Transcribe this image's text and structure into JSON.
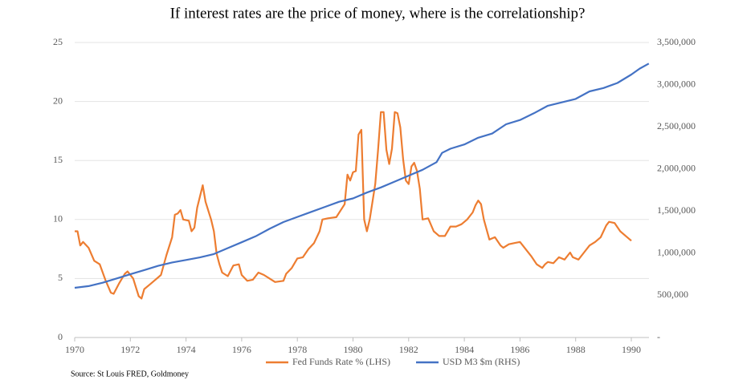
{
  "chart_data": {
    "type": "line",
    "title": "If interest rates are the price of money, where is the correlationship?",
    "source": "Source: St Louis FRED, Goldmoney",
    "xlim": [
      1970,
      1990.75
    ],
    "xticks": [
      1970,
      1972,
      1974,
      1976,
      1978,
      1980,
      1982,
      1984,
      1986,
      1988,
      1990
    ],
    "ylim": [
      0,
      25
    ],
    "yticks": [
      0,
      5,
      10,
      15,
      20,
      25
    ],
    "y2lim": [
      0,
      3500000
    ],
    "y2ticks": [
      {
        "value": 0,
        "label": "-"
      },
      {
        "value": 500000,
        "label": "500,000"
      },
      {
        "value": 1000000,
        "label": "1,000,000"
      },
      {
        "value": 1500000,
        "label": "1,500,000"
      },
      {
        "value": 2000000,
        "label": "2,000,000"
      },
      {
        "value": 2500000,
        "label": "2,500,000"
      },
      {
        "value": 3000000,
        "label": "3,000,000"
      },
      {
        "value": 3500000,
        "label": "3,500,000"
      }
    ],
    "grid": true,
    "legend": "bottom",
    "series": [
      {
        "name": "Fed Funds Rate % (LHS)",
        "color": "#ed7d31",
        "axis": "y",
        "x": [
          1970.0,
          1970.1,
          1970.2,
          1970.3,
          1970.5,
          1970.7,
          1970.9,
          1971.1,
          1971.3,
          1971.4,
          1971.6,
          1971.8,
          1971.9,
          1972.1,
          1972.3,
          1972.4,
          1972.5,
          1972.7,
          1972.9,
          1973.1,
          1973.3,
          1973.5,
          1973.6,
          1973.7,
          1973.8,
          1973.9,
          1974.1,
          1974.2,
          1974.3,
          1974.4,
          1974.6,
          1974.7,
          1974.9,
          1975.0,
          1975.1,
          1975.2,
          1975.3,
          1975.5,
          1975.7,
          1975.9,
          1976.0,
          1976.2,
          1976.4,
          1976.6,
          1976.8,
          1977.0,
          1977.2,
          1977.5,
          1977.6,
          1977.8,
          1978.0,
          1978.2,
          1978.4,
          1978.6,
          1978.8,
          1978.9,
          1979.1,
          1979.4,
          1979.7,
          1979.8,
          1979.9,
          1980.0,
          1980.1,
          1980.2,
          1980.3,
          1980.4,
          1980.5,
          1980.6,
          1980.8,
          1980.9,
          1981.0,
          1981.1,
          1981.2,
          1981.3,
          1981.4,
          1981.5,
          1981.6,
          1981.7,
          1981.8,
          1981.9,
          1982.0,
          1982.1,
          1982.2,
          1982.3,
          1982.4,
          1982.5,
          1982.7,
          1982.9,
          1983.1,
          1983.3,
          1983.5,
          1983.7,
          1983.9,
          1984.1,
          1984.3,
          1984.4,
          1984.5,
          1984.6,
          1984.7,
          1984.9,
          1985.1,
          1985.3,
          1985.4,
          1985.6,
          1985.8,
          1986.0,
          1986.2,
          1986.4,
          1986.6,
          1986.8,
          1986.9,
          1987.0,
          1987.2,
          1987.4,
          1987.6,
          1987.8,
          1987.9,
          1988.1,
          1988.3,
          1988.5,
          1988.7,
          1988.9,
          1989.1,
          1989.2,
          1989.4,
          1989.6,
          1989.8,
          1990.0
        ],
        "values": [
          9.0,
          9.0,
          7.8,
          8.1,
          7.6,
          6.5,
          6.2,
          4.9,
          3.8,
          3.7,
          4.6,
          5.4,
          5.6,
          5.0,
          3.5,
          3.3,
          4.1,
          4.5,
          4.9,
          5.3,
          7.0,
          8.5,
          10.4,
          10.5,
          10.8,
          10.0,
          9.9,
          9.0,
          9.3,
          11.0,
          12.9,
          11.5,
          10.0,
          9.0,
          7.1,
          6.2,
          5.5,
          5.2,
          6.1,
          6.2,
          5.3,
          4.8,
          4.9,
          5.5,
          5.3,
          5.0,
          4.7,
          4.8,
          5.4,
          5.9,
          6.7,
          6.8,
          7.5,
          8.0,
          9.0,
          10.0,
          10.1,
          10.2,
          11.3,
          13.8,
          13.3,
          14.0,
          14.1,
          17.2,
          17.6,
          10.0,
          9.0,
          10.0,
          13.0,
          15.9,
          19.1,
          19.1,
          15.9,
          14.7,
          16.0,
          19.1,
          19.0,
          17.8,
          15.1,
          13.3,
          13.0,
          14.5,
          14.8,
          14.1,
          12.6,
          10.0,
          10.1,
          9.0,
          8.6,
          8.6,
          9.4,
          9.4,
          9.6,
          10.0,
          10.6,
          11.2,
          11.6,
          11.3,
          10.0,
          8.3,
          8.5,
          7.8,
          7.6,
          7.9,
          8.0,
          8.1,
          7.5,
          6.9,
          6.2,
          5.9,
          6.2,
          6.4,
          6.3,
          6.8,
          6.6,
          7.2,
          6.8,
          6.6,
          7.2,
          7.8,
          8.1,
          8.5,
          9.5,
          9.8,
          9.7,
          9.0,
          8.6,
          8.2
        ]
      },
      {
        "name": "USD M3 $m (RHS)",
        "color": "#4472c4",
        "axis": "y2",
        "x": [
          1970.0,
          1970.5,
          1971.0,
          1971.5,
          1972.0,
          1972.5,
          1973.0,
          1973.5,
          1974.0,
          1974.5,
          1975.0,
          1975.5,
          1976.0,
          1976.5,
          1977.0,
          1977.5,
          1978.0,
          1978.5,
          1979.0,
          1979.5,
          1980.0,
          1980.5,
          1981.0,
          1981.5,
          1982.0,
          1982.5,
          1983.0,
          1983.2,
          1983.5,
          1984.0,
          1984.5,
          1985.0,
          1985.5,
          1986.0,
          1986.5,
          1987.0,
          1987.5,
          1988.0,
          1988.5,
          1989.0,
          1989.5,
          1990.0,
          1990.3,
          1990.63
        ],
        "values": [
          590000,
          610000,
          650000,
          700000,
          750000,
          800000,
          850000,
          890000,
          920000,
          950000,
          990000,
          1060000,
          1130000,
          1200000,
          1290000,
          1370000,
          1430000,
          1490000,
          1550000,
          1610000,
          1650000,
          1720000,
          1780000,
          1850000,
          1920000,
          1990000,
          2080000,
          2190000,
          2240000,
          2290000,
          2370000,
          2420000,
          2530000,
          2580000,
          2660000,
          2750000,
          2790000,
          2830000,
          2920000,
          2960000,
          3020000,
          3120000,
          3190000,
          3250000
        ]
      }
    ]
  }
}
